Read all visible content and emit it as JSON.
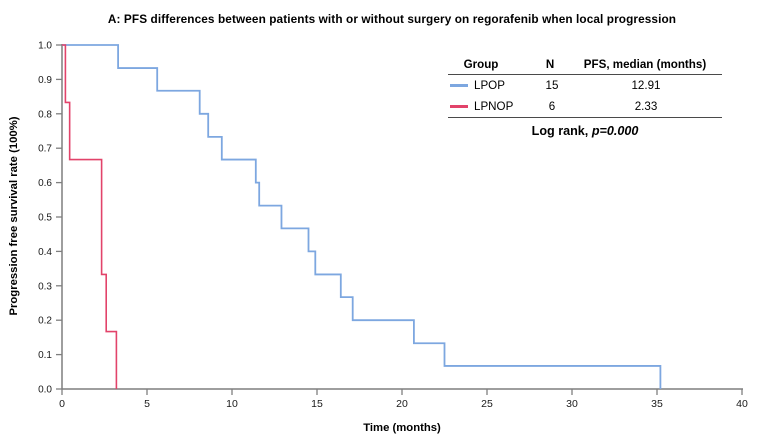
{
  "chart_data": {
    "type": "line",
    "subtype": "kaplan-meier-step",
    "title": "A: PFS differences between patients with or without surgery on regorafenib when local progression",
    "xlabel": "Time (months)",
    "ylabel": "Progression free survival rate (100%)",
    "xlim": [
      0,
      40
    ],
    "ylim": [
      0.0,
      1.0
    ],
    "xticks": [
      0,
      5,
      10,
      15,
      20,
      25,
      30,
      35,
      40
    ],
    "yticks": [
      0.0,
      0.1,
      0.2,
      0.3,
      0.4,
      0.5,
      0.6,
      0.7,
      0.8,
      0.9,
      1.0
    ],
    "grid": false,
    "legend_position": "top-right",
    "axis_color": "#7f7f7f",
    "series": [
      {
        "name": "LPOP",
        "color": "#7da7e0",
        "n": 15,
        "median_months": 12.91,
        "start": [
          0,
          1.0
        ],
        "steps": [
          [
            3.3,
            0.933
          ],
          [
            5.6,
            0.867
          ],
          [
            8.1,
            0.8
          ],
          [
            8.6,
            0.733
          ],
          [
            9.4,
            0.667
          ],
          [
            11.4,
            0.6
          ],
          [
            11.6,
            0.533
          ],
          [
            12.91,
            0.467
          ],
          [
            14.5,
            0.4
          ],
          [
            14.9,
            0.333
          ],
          [
            16.4,
            0.267
          ],
          [
            17.1,
            0.2
          ],
          [
            20.7,
            0.133
          ],
          [
            22.5,
            0.067
          ],
          [
            35.2,
            0.0
          ]
        ]
      },
      {
        "name": "LPNOP",
        "color": "#e2436a",
        "n": 6,
        "median_months": 2.33,
        "start": [
          0,
          1.0
        ],
        "steps": [
          [
            0.2,
            0.833
          ],
          [
            0.45,
            0.667
          ],
          [
            2.33,
            0.333
          ],
          [
            2.6,
            0.167
          ],
          [
            3.2,
            0.0
          ]
        ]
      }
    ]
  },
  "legend_table": {
    "headers": [
      "Group",
      "N",
      "PFS, median (months)"
    ],
    "rows": [
      {
        "group": "LPOP",
        "n": "15",
        "median": "12.91",
        "color": "#7da7e0"
      },
      {
        "group": "LPNOP",
        "n": "6",
        "median": "2.33",
        "color": "#e2436a"
      }
    ],
    "footer_prefix": "Log rank, ",
    "footer_p": "p=0.000"
  }
}
